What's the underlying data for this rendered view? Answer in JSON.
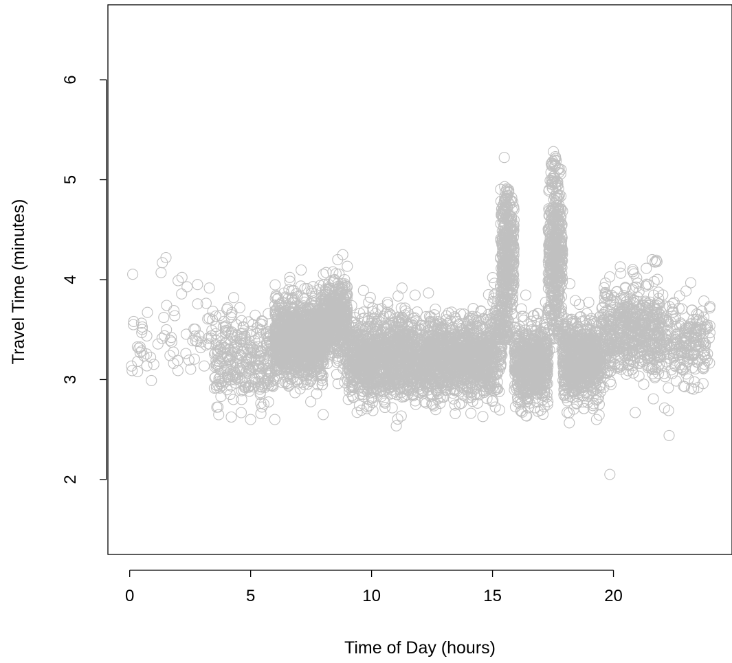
{
  "chart_data": {
    "type": "scatter",
    "xlabel": "Time of Day (hours)",
    "ylabel": "Travel Time (minutes)",
    "xlim": [
      -0.9,
      24.9
    ],
    "ylim": [
      1.25,
      6.75
    ],
    "xticks": [
      0,
      5,
      10,
      15,
      20
    ],
    "yticks": [
      2,
      3,
      4,
      5,
      6
    ],
    "point_color": "#c0c0c0",
    "marker": "open-circle",
    "clusters": [
      {
        "x_range": [
          0.0,
          3.5
        ],
        "y_center": 3.45,
        "y_spread": 0.25,
        "count": 70
      },
      {
        "x_range": [
          3.5,
          6.0
        ],
        "y_center": 3.2,
        "y_spread": 0.22,
        "count": 300
      },
      {
        "x_range": [
          6.0,
          8.0
        ],
        "y_center": 3.4,
        "y_spread": 0.2,
        "count": 1100
      },
      {
        "x_range": [
          8.0,
          9.0
        ],
        "y_center": 3.6,
        "y_spread": 0.2,
        "count": 450
      },
      {
        "x_range": [
          9.0,
          15.0
        ],
        "y_center": 3.22,
        "y_spread": 0.2,
        "count": 2200
      },
      {
        "x_range": [
          15.0,
          15.4
        ],
        "y_center": 3.4,
        "y_spread": 0.25,
        "count": 120
      },
      {
        "x_range": [
          15.4,
          15.9
        ],
        "y_center": 4.3,
        "y_spread": 0.3,
        "count": 250
      },
      {
        "x_range": [
          15.9,
          17.3
        ],
        "y_center": 3.15,
        "y_spread": 0.2,
        "count": 600
      },
      {
        "x_range": [
          17.3,
          17.9
        ],
        "y_center": 4.2,
        "y_spread": 0.35,
        "count": 300
      },
      {
        "x_range": [
          17.9,
          19.5
        ],
        "y_center": 3.2,
        "y_spread": 0.2,
        "count": 700
      },
      {
        "x_range": [
          19.5,
          22.0
        ],
        "y_center": 3.5,
        "y_spread": 0.22,
        "count": 550
      },
      {
        "x_range": [
          22.0,
          24.0
        ],
        "y_center": 3.38,
        "y_spread": 0.2,
        "count": 220
      }
    ],
    "peaks": [
      {
        "x": 15.5,
        "y_max": 4.93
      },
      {
        "x": 17.6,
        "y_max": 5.23
      }
    ],
    "outliers": [
      {
        "x": 19.85,
        "y": 2.05
      },
      {
        "x": 22.3,
        "y": 2.44
      },
      {
        "x": 5.0,
        "y": 2.6
      },
      {
        "x": 1.5,
        "y": 4.22
      },
      {
        "x": 1.35,
        "y": 4.17
      },
      {
        "x": 1.3,
        "y": 4.07
      },
      {
        "x": 2.0,
        "y": 3.99
      },
      {
        "x": 4.3,
        "y": 3.82
      },
      {
        "x": 8.6,
        "y": 4.2
      },
      {
        "x": 20.8,
        "y": 4.08
      },
      {
        "x": 21.6,
        "y": 4.2
      },
      {
        "x": 21.8,
        "y": 4.18
      },
      {
        "x": 23.5,
        "y": 2.92
      },
      {
        "x": 19.3,
        "y": 2.6
      },
      {
        "x": 8.0,
        "y": 2.65
      },
      {
        "x": 6.0,
        "y": 2.6
      },
      {
        "x": 14.6,
        "y": 2.63
      },
      {
        "x": 20.9,
        "y": 2.67
      },
      {
        "x": 0.1,
        "y": 3.09
      },
      {
        "x": 0.9,
        "y": 2.99
      }
    ]
  }
}
